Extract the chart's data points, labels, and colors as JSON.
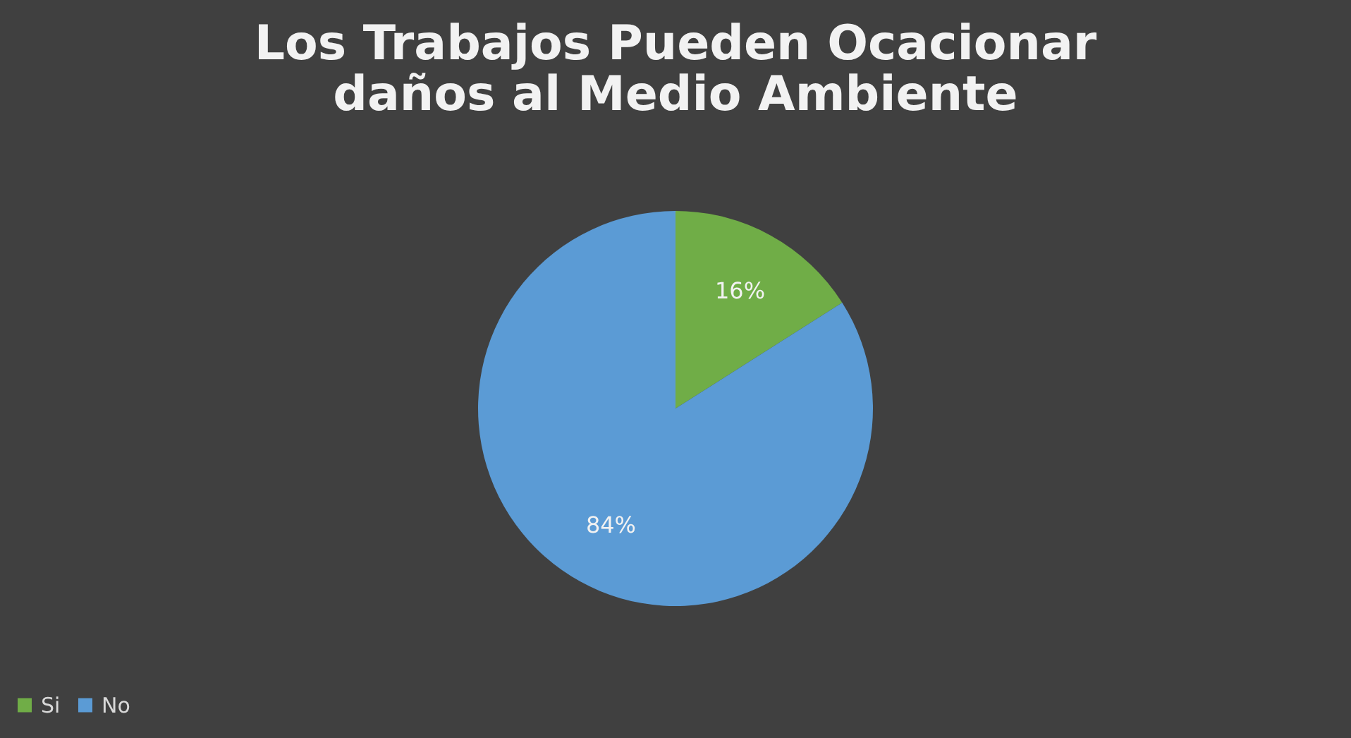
{
  "chart_data": {
    "type": "pie",
    "title": [
      "Los Trabajos Pueden Ocacionar",
      "daños al Medio Ambiente"
    ],
    "categories": [
      "Si",
      "No"
    ],
    "values": [
      16,
      84
    ],
    "colors": [
      "#70ad47",
      "#5b9bd5"
    ],
    "value_labels": [
      "16%",
      "84%"
    ],
    "legend": "bottom"
  }
}
